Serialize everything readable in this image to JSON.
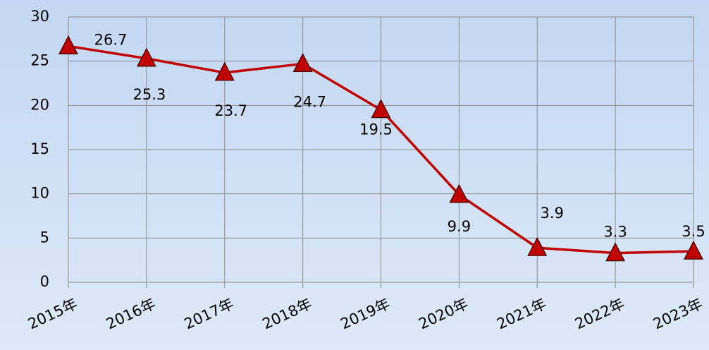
{
  "chart_data": {
    "type": "line",
    "categories": [
      "2015年",
      "2016年",
      "2017年",
      "2018年",
      "2019年",
      "2020年",
      "2021年",
      "2022年",
      "2023年"
    ],
    "series": [
      {
        "name": "value",
        "color": "#c00000",
        "values": [
          26.7,
          25.3,
          23.7,
          24.7,
          19.5,
          9.9,
          3.9,
          3.3,
          3.5
        ]
      }
    ],
    "ylim": [
      0,
      30
    ],
    "yticks": [
      0,
      5,
      10,
      15,
      20,
      25,
      30
    ],
    "grid": true
  }
}
